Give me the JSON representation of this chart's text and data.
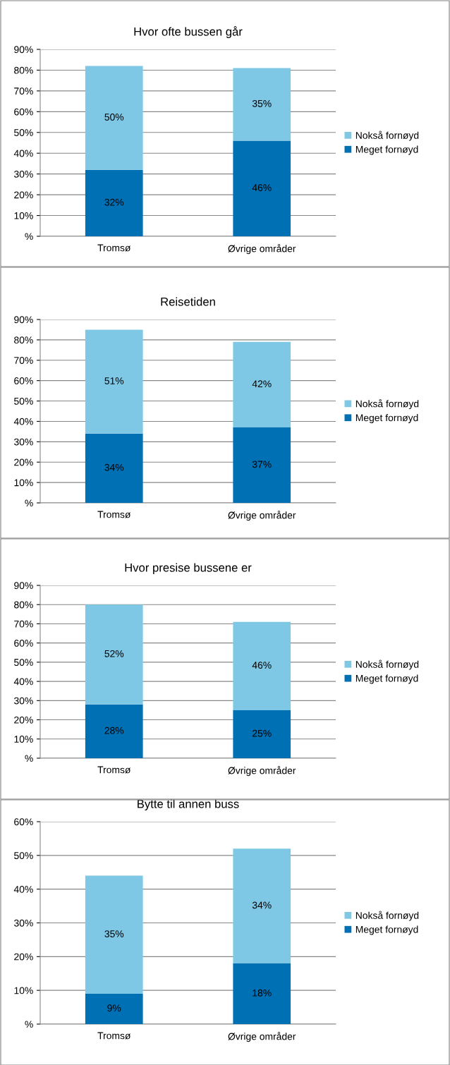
{
  "chart_data": [
    {
      "type": "bar",
      "title": "Hvor ofte bussen går",
      "stacked": true,
      "categories": [
        "Tromsø",
        "Øvrige områder"
      ],
      "series": [
        {
          "name": "Meget fornøyd",
          "color": "#0070b4",
          "values": [
            32,
            46
          ],
          "value_labels": [
            "32%",
            "46%"
          ]
        },
        {
          "name": "Nokså fornøyd",
          "color": "#7ec8e6",
          "values": [
            50,
            35
          ],
          "value_labels": [
            "50%",
            "35%"
          ]
        }
      ],
      "ylim": [
        0,
        90
      ],
      "yticks": [
        {
          "value": 0,
          "label": "%"
        },
        {
          "value": 10,
          "label": "10%"
        },
        {
          "value": 20,
          "label": "20%"
        },
        {
          "value": 30,
          "label": "30%"
        },
        {
          "value": 40,
          "label": "40%"
        },
        {
          "value": 50,
          "label": "50%"
        },
        {
          "value": 60,
          "label": "60%"
        },
        {
          "value": 70,
          "label": "70%"
        },
        {
          "value": 80,
          "label": "80%"
        },
        {
          "value": 90,
          "label": "90%"
        }
      ],
      "grid": "y",
      "legend": "right"
    },
    {
      "type": "bar",
      "title": "Reisetiden",
      "stacked": true,
      "categories": [
        "Tromsø",
        "Øvrige områder"
      ],
      "series": [
        {
          "name": "Meget fornøyd",
          "color": "#0070b4",
          "values": [
            34,
            37
          ],
          "value_labels": [
            "34%",
            "37%"
          ]
        },
        {
          "name": "Nokså fornøyd",
          "color": "#7ec8e6",
          "values": [
            51,
            42
          ],
          "value_labels": [
            "51%",
            "42%"
          ]
        }
      ],
      "ylim": [
        0,
        90
      ],
      "yticks": [
        {
          "value": 0,
          "label": "%"
        },
        {
          "value": 10,
          "label": "10%"
        },
        {
          "value": 20,
          "label": "20%"
        },
        {
          "value": 30,
          "label": "30%"
        },
        {
          "value": 40,
          "label": "40%"
        },
        {
          "value": 50,
          "label": "50%"
        },
        {
          "value": 60,
          "label": "60%"
        },
        {
          "value": 70,
          "label": "70%"
        },
        {
          "value": 80,
          "label": "80%"
        },
        {
          "value": 90,
          "label": "90%"
        }
      ],
      "grid": "y",
      "legend": "right"
    },
    {
      "type": "bar",
      "title": "Hvor presise bussene er",
      "stacked": true,
      "categories": [
        "Tromsø",
        "Øvrige områder"
      ],
      "series": [
        {
          "name": "Meget fornøyd",
          "color": "#0070b4",
          "values": [
            28,
            25
          ],
          "value_labels": [
            "28%",
            "25%"
          ]
        },
        {
          "name": "Nokså fornøyd",
          "color": "#7ec8e6",
          "values": [
            52,
            46
          ],
          "value_labels": [
            "52%",
            "46%"
          ]
        }
      ],
      "ylim": [
        0,
        90
      ],
      "yticks": [
        {
          "value": 0,
          "label": "%"
        },
        {
          "value": 10,
          "label": "10%"
        },
        {
          "value": 20,
          "label": "20%"
        },
        {
          "value": 30,
          "label": "30%"
        },
        {
          "value": 40,
          "label": "40%"
        },
        {
          "value": 50,
          "label": "50%"
        },
        {
          "value": 60,
          "label": "60%"
        },
        {
          "value": 70,
          "label": "70%"
        },
        {
          "value": 80,
          "label": "80%"
        },
        {
          "value": 90,
          "label": "90%"
        }
      ],
      "grid": "y",
      "legend": "right"
    },
    {
      "type": "bar",
      "title": "Bytte til annen buss",
      "stacked": true,
      "categories": [
        "Tromsø",
        "Øvrige områder"
      ],
      "series": [
        {
          "name": "Meget fornøyd",
          "color": "#0070b4",
          "values": [
            9,
            18
          ],
          "value_labels": [
            "9%",
            "18%"
          ]
        },
        {
          "name": "Nokså fornøyd",
          "color": "#7ec8e6",
          "values": [
            35,
            34
          ],
          "value_labels": [
            "35%",
            "34%"
          ]
        }
      ],
      "ylim": [
        0,
        60
      ],
      "yticks": [
        {
          "value": 0,
          "label": "%"
        },
        {
          "value": 10,
          "label": "10%"
        },
        {
          "value": 20,
          "label": "20%"
        },
        {
          "value": 30,
          "label": "30%"
        },
        {
          "value": 40,
          "label": "40%"
        },
        {
          "value": 50,
          "label": "50%"
        },
        {
          "value": 60,
          "label": "60%"
        }
      ],
      "grid": "y",
      "legend": "right"
    }
  ]
}
